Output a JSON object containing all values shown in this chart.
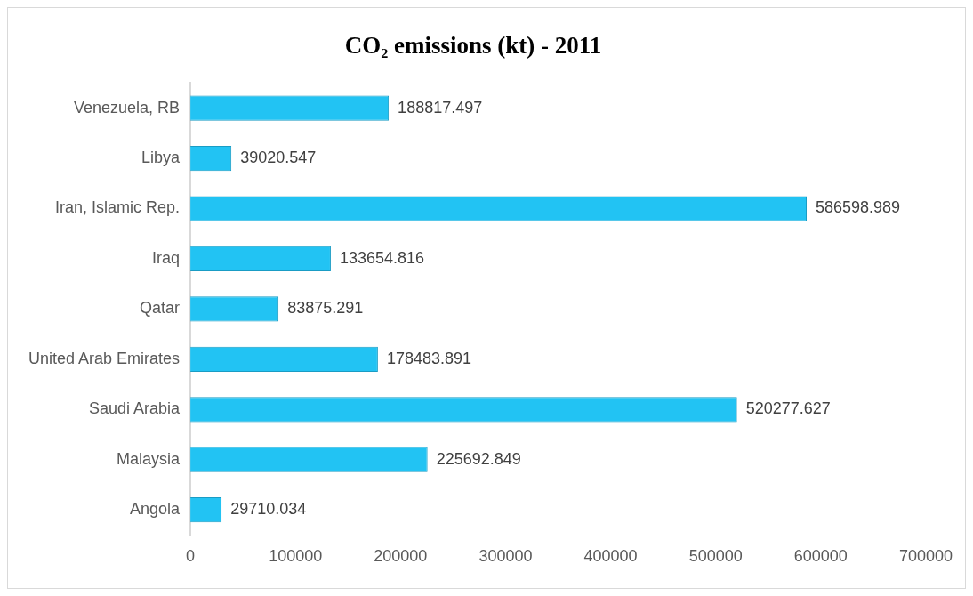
{
  "chart_data": {
    "type": "bar",
    "orientation": "horizontal",
    "title": "CO₂ emissions (kt) - 2011",
    "categories": [
      "Venezuela, RB",
      "Libya",
      "Iran, Islamic Rep.",
      "Iraq",
      "Qatar",
      "United Arab Emirates",
      "Saudi Arabia",
      "Malaysia",
      "Angola"
    ],
    "values": [
      188817.497,
      39020.547,
      586598.989,
      133654.816,
      83875.291,
      178483.891,
      520277.627,
      225692.849,
      29710.034
    ],
    "color": "#22c3f3",
    "xlim": [
      0,
      700000
    ],
    "xticks": [
      0,
      100000,
      200000,
      300000,
      400000,
      500000,
      600000,
      700000
    ],
    "grid": false,
    "legend": false,
    "data_labels": true
  }
}
